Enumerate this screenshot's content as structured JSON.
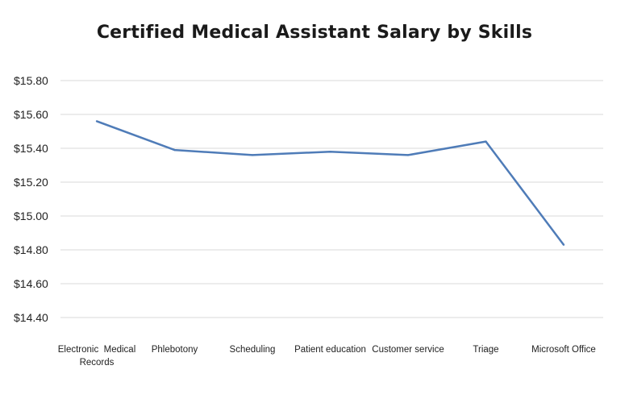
{
  "chart_data": {
    "type": "line",
    "title": "Certified Medical Assistant Salary by Skills",
    "xlabel": "",
    "ylabel": "",
    "categories": [
      [
        "Electronic  Medical",
        "Records"
      ],
      [
        "Phlebotony"
      ],
      [
        "Scheduling"
      ],
      [
        "Patient education"
      ],
      [
        "Customer service"
      ],
      [
        "Triage"
      ],
      [
        "Microsoft Office"
      ]
    ],
    "series": [
      {
        "values": [
          15.56,
          15.39,
          15.36,
          15.38,
          15.36,
          15.44,
          14.83
        ]
      }
    ],
    "ylim": [
      14.4,
      15.8
    ],
    "yticks": [
      "$15.80",
      "$15.60",
      "$15.40",
      "$15.20",
      "$15.00",
      "$14.80",
      "$14.60",
      "$14.40"
    ],
    "ytick_values": [
      15.8,
      15.6,
      15.4,
      15.2,
      15.0,
      14.8,
      14.6,
      14.4
    ],
    "grid": true,
    "line_color": "#4f7cb8",
    "grid_color": "#d9d9d9"
  }
}
